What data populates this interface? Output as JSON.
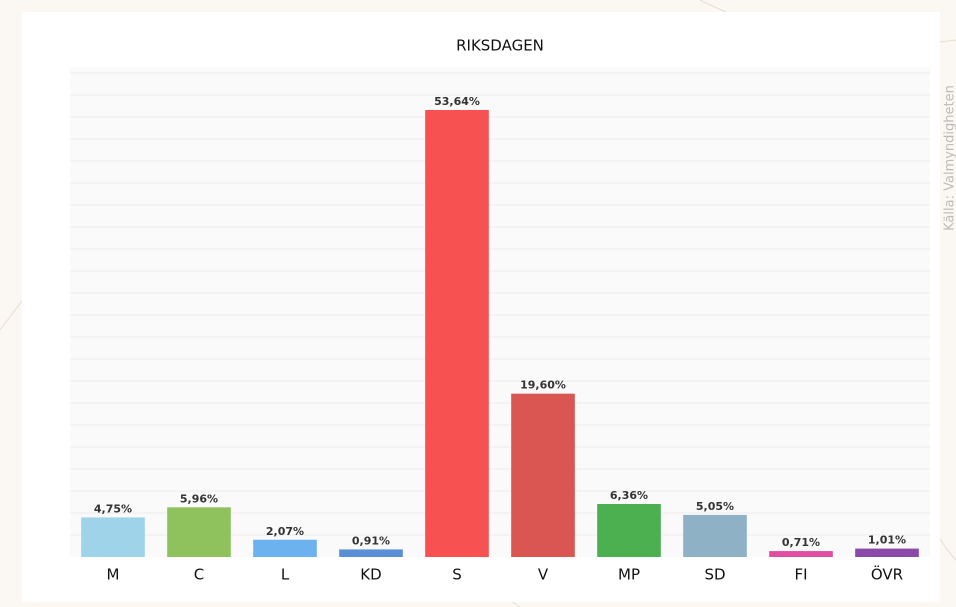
{
  "chart_data": {
    "type": "bar",
    "title": "RIKSDAGEN",
    "source": "Källa: Valmyndigheten",
    "categories": [
      "M",
      "C",
      "L",
      "KD",
      "S",
      "V",
      "MP",
      "SD",
      "FI",
      "ÖVR"
    ],
    "values": [
      4.75,
      5.96,
      2.07,
      0.91,
      53.64,
      19.6,
      6.36,
      5.05,
      0.71,
      1.01
    ],
    "value_labels": [
      "4,75%",
      "5,96%",
      "2,07%",
      "0,91%",
      "53,64%",
      "19,60%",
      "6,36%",
      "5,05%",
      "0,71%",
      "1,01%"
    ],
    "colors": [
      "#9fd3ea",
      "#8fc25d",
      "#6cb2ef",
      "#5a8fd8",
      "#f75152",
      "#d95652",
      "#4caf50",
      "#8fb1c6",
      "#e04da2",
      "#8c4aa8"
    ],
    "ylim": [
      0,
      60
    ],
    "grid": true
  }
}
